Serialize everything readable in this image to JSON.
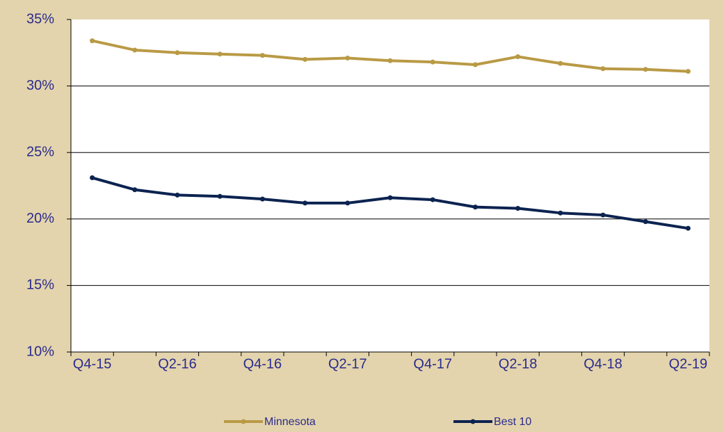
{
  "chart_data": {
    "type": "line",
    "categories": [
      "Q4-15",
      null,
      "Q2-16",
      null,
      "Q4-16",
      null,
      "Q2-17",
      null,
      "Q4-17",
      null,
      "Q2-18",
      null,
      "Q4-18",
      null,
      "Q2-19"
    ],
    "series": [
      {
        "name": "Minnesota",
        "color": "#b99a45",
        "values": [
          33.4,
          32.7,
          32.5,
          32.4,
          32.3,
          32.0,
          32.1,
          31.9,
          31.8,
          31.6,
          32.2,
          31.7,
          31.3,
          31.25,
          31.1
        ]
      },
      {
        "name": "Best 10",
        "color": "#0c2350",
        "values": [
          23.1,
          22.2,
          21.8,
          21.7,
          21.5,
          21.2,
          21.2,
          21.6,
          21.45,
          20.9,
          20.8,
          20.45,
          20.3,
          19.8,
          19.3
        ]
      }
    ],
    "ylim": [
      10,
      35
    ],
    "yticks": [
      {
        "value": 10,
        "label": "10%"
      },
      {
        "value": 15,
        "label": "15%"
      },
      {
        "value": 20,
        "label": "20%"
      },
      {
        "value": 25,
        "label": "25%"
      },
      {
        "value": 30,
        "label": "30%"
      },
      {
        "value": 35,
        "label": "35%"
      }
    ],
    "grid": true
  }
}
